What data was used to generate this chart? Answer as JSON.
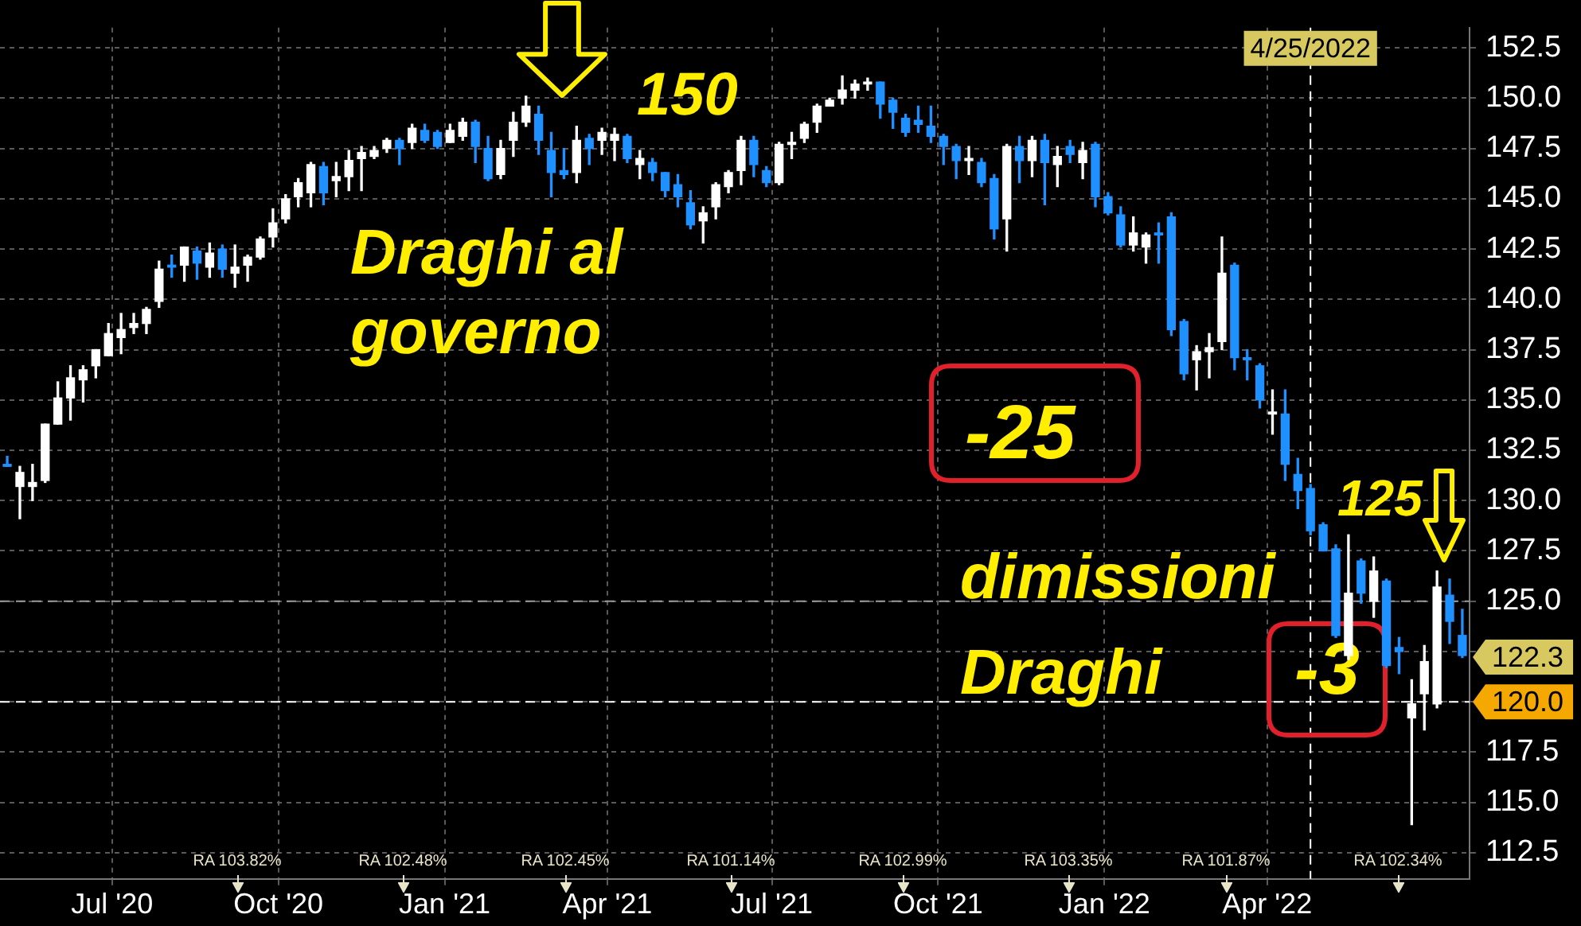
{
  "chart_data": {
    "type": "candlestick",
    "x": [
      "2020-05-04",
      "2020-05-11",
      "2020-05-18",
      "2020-05-25",
      "2020-06-01",
      "2020-06-08",
      "2020-06-15",
      "2020-06-22",
      "2020-06-29",
      "2020-07-06",
      "2020-07-13",
      "2020-07-20",
      "2020-07-27",
      "2020-08-03",
      "2020-08-10",
      "2020-08-17",
      "2020-08-24",
      "2020-08-31",
      "2020-09-07",
      "2020-09-14",
      "2020-09-21",
      "2020-09-28",
      "2020-10-05",
      "2020-10-12",
      "2020-10-19",
      "2020-10-26",
      "2020-11-02",
      "2020-11-09",
      "2020-11-16",
      "2020-11-23",
      "2020-11-30",
      "2020-12-07",
      "2020-12-14",
      "2020-12-21",
      "2020-12-28",
      "2021-01-04",
      "2021-01-11",
      "2021-01-18",
      "2021-01-25",
      "2021-02-01",
      "2021-02-08",
      "2021-02-15",
      "2021-02-22",
      "2021-03-01",
      "2021-03-08",
      "2021-03-15",
      "2021-03-22",
      "2021-03-29",
      "2021-04-05",
      "2021-04-12",
      "2021-04-19",
      "2021-04-26",
      "2021-05-03",
      "2021-05-10",
      "2021-05-17",
      "2021-05-24",
      "2021-05-31",
      "2021-06-07",
      "2021-06-14",
      "2021-06-21",
      "2021-06-28",
      "2021-07-05",
      "2021-07-12",
      "2021-07-19",
      "2021-07-26",
      "2021-08-02",
      "2021-08-09",
      "2021-08-16",
      "2021-08-23",
      "2021-08-30",
      "2021-09-06",
      "2021-09-13",
      "2021-09-20",
      "2021-09-27",
      "2021-10-04",
      "2021-10-11",
      "2021-10-18",
      "2021-10-25",
      "2021-11-01",
      "2021-11-08",
      "2021-11-15",
      "2021-11-22",
      "2021-11-29",
      "2021-12-06",
      "2021-12-13",
      "2021-12-20",
      "2021-12-27",
      "2022-01-03",
      "2022-01-10",
      "2022-01-17",
      "2022-01-24",
      "2022-01-31",
      "2022-02-07",
      "2022-02-14",
      "2022-02-21",
      "2022-02-28",
      "2022-03-07",
      "2022-03-14",
      "2022-03-21",
      "2022-03-28",
      "2022-04-04",
      "2022-04-11",
      "2022-04-18",
      "2022-04-25",
      "2022-05-02",
      "2022-05-09",
      "2022-05-16",
      "2022-05-23",
      "2022-05-30",
      "2022-06-06",
      "2022-06-13",
      "2022-06-20",
      "2022-06-27",
      "2022-07-04",
      "2022-07-11",
      "2022-07-18"
    ],
    "ohlc": [
      [
        131.8,
        132.2,
        131.7,
        131.7
      ],
      [
        130.7,
        131.7,
        129.1,
        131.4
      ],
      [
        130.7,
        131.8,
        130.0,
        130.9
      ],
      [
        131.0,
        133.8,
        130.9,
        133.8
      ],
      [
        133.8,
        135.9,
        133.8,
        135.1
      ],
      [
        135.1,
        136.7,
        134.0,
        136.1
      ],
      [
        136.0,
        136.7,
        134.9,
        136.5
      ],
      [
        136.7,
        137.5,
        136.1,
        137.5
      ],
      [
        137.2,
        138.8,
        137.2,
        138.3
      ],
      [
        138.1,
        139.3,
        137.3,
        138.5
      ],
      [
        138.6,
        139.3,
        138.3,
        138.8
      ],
      [
        138.8,
        139.6,
        138.3,
        139.5
      ],
      [
        139.9,
        141.9,
        139.6,
        141.5
      ],
      [
        141.7,
        142.2,
        141.1,
        141.6
      ],
      [
        141.7,
        142.6,
        140.9,
        142.6
      ],
      [
        142.4,
        142.6,
        141.0,
        141.8
      ],
      [
        141.6,
        142.8,
        141.1,
        142.3
      ],
      [
        142.5,
        142.7,
        141.1,
        141.5
      ],
      [
        141.3,
        142.7,
        140.6,
        141.6
      ],
      [
        141.7,
        142.2,
        140.9,
        142.1
      ],
      [
        142.1,
        143.1,
        142.0,
        143.0
      ],
      [
        143.1,
        144.5,
        142.6,
        143.8
      ],
      [
        144.0,
        145.2,
        143.8,
        145.0
      ],
      [
        145.1,
        146.0,
        144.6,
        145.8
      ],
      [
        145.3,
        146.8,
        144.6,
        146.7
      ],
      [
        146.6,
        146.8,
        144.7,
        145.3
      ],
      [
        145.9,
        146.8,
        145.1,
        146.1
      ],
      [
        146.1,
        147.4,
        145.4,
        146.9
      ],
      [
        147.0,
        147.6,
        145.4,
        147.3
      ],
      [
        147.1,
        147.6,
        147.0,
        147.4
      ],
      [
        147.5,
        148.0,
        147.3,
        147.9
      ],
      [
        147.9,
        148.0,
        146.7,
        147.5
      ],
      [
        147.8,
        148.7,
        147.5,
        148.5
      ],
      [
        148.4,
        148.7,
        147.8,
        147.9
      ],
      [
        148.3,
        148.4,
        147.5,
        147.6
      ],
      [
        147.8,
        148.7,
        147.8,
        148.4
      ],
      [
        148.1,
        149.0,
        147.9,
        148.8
      ],
      [
        148.8,
        148.9,
        146.8,
        147.6
      ],
      [
        147.5,
        148.1,
        145.9,
        146.0
      ],
      [
        146.2,
        147.9,
        146.0,
        147.5
      ],
      [
        147.9,
        149.3,
        147.1,
        148.8
      ],
      [
        148.8,
        150.1,
        148.6,
        149.6
      ],
      [
        149.2,
        149.6,
        147.2,
        147.9
      ],
      [
        147.4,
        148.3,
        145.1,
        146.3
      ],
      [
        146.4,
        147.5,
        146.0,
        146.2
      ],
      [
        146.3,
        148.6,
        145.8,
        147.9
      ],
      [
        148.0,
        148.2,
        146.7,
        147.5
      ],
      [
        147.9,
        148.5,
        147.2,
        148.3
      ],
      [
        147.9,
        148.5,
        146.9,
        148.2
      ],
      [
        148.1,
        148.2,
        146.8,
        147.0
      ],
      [
        146.7,
        147.4,
        146.0,
        147.0
      ],
      [
        146.8,
        147.0,
        145.9,
        146.3
      ],
      [
        146.3,
        146.3,
        145.1,
        145.4
      ],
      [
        145.7,
        146.2,
        144.6,
        145.1
      ],
      [
        144.8,
        145.4,
        143.5,
        143.7
      ],
      [
        143.9,
        144.6,
        142.8,
        144.3
      ],
      [
        144.6,
        145.8,
        144.0,
        145.7
      ],
      [
        145.6,
        146.4,
        145.3,
        146.3
      ],
      [
        146.4,
        148.1,
        145.7,
        147.9
      ],
      [
        147.9,
        148.1,
        146.1,
        146.7
      ],
      [
        146.4,
        146.6,
        145.6,
        145.8
      ],
      [
        145.8,
        147.8,
        145.7,
        147.7
      ],
      [
        147.7,
        148.3,
        147.0,
        147.8
      ],
      [
        148.0,
        148.8,
        147.8,
        148.7
      ],
      [
        148.8,
        149.7,
        148.3,
        149.6
      ],
      [
        149.6,
        150.0,
        149.6,
        149.9
      ],
      [
        150.0,
        151.1,
        149.7,
        150.4
      ],
      [
        150.4,
        150.9,
        150.0,
        150.7
      ],
      [
        150.7,
        151.0,
        150.4,
        150.8
      ],
      [
        150.8,
        150.8,
        149.0,
        149.7
      ],
      [
        149.9,
        150.0,
        148.5,
        149.3
      ],
      [
        149.0,
        149.2,
        148.1,
        148.3
      ],
      [
        148.9,
        149.6,
        148.3,
        148.7
      ],
      [
        148.6,
        149.6,
        147.8,
        148.1
      ],
      [
        148.1,
        148.2,
        146.7,
        147.6
      ],
      [
        147.6,
        147.7,
        146.0,
        146.9
      ],
      [
        146.9,
        147.6,
        146.2,
        147.0
      ],
      [
        146.8,
        147.0,
        145.6,
        145.8
      ],
      [
        146.0,
        146.2,
        143.0,
        143.5
      ],
      [
        144.0,
        147.7,
        142.4,
        147.6
      ],
      [
        147.6,
        148.1,
        145.8,
        146.9
      ],
      [
        146.9,
        148.1,
        146.1,
        147.9
      ],
      [
        147.9,
        148.2,
        144.7,
        146.8
      ],
      [
        146.7,
        147.6,
        145.6,
        147.1
      ],
      [
        147.6,
        147.9,
        146.8,
        147.2
      ],
      [
        146.8,
        147.8,
        146.0,
        147.4
      ],
      [
        147.7,
        147.8,
        144.6,
        145.1
      ],
      [
        145.1,
        145.3,
        144.2,
        144.3
      ],
      [
        144.2,
        144.6,
        142.6,
        142.7
      ],
      [
        142.7,
        144.1,
        142.4,
        143.3
      ],
      [
        142.6,
        143.3,
        141.8,
        143.2
      ],
      [
        143.3,
        143.8,
        141.8,
        143.2
      ],
      [
        144.1,
        144.3,
        138.2,
        138.5
      ],
      [
        138.9,
        139.0,
        136.0,
        136.3
      ],
      [
        137.0,
        137.7,
        135.5,
        137.4
      ],
      [
        137.4,
        138.3,
        136.1,
        137.6
      ],
      [
        137.9,
        143.1,
        137.5,
        141.3
      ],
      [
        141.7,
        141.8,
        136.5,
        137.1
      ],
      [
        137.1,
        137.5,
        136.0,
        137.0
      ],
      [
        136.7,
        136.8,
        134.6,
        135.0
      ],
      [
        134.3,
        135.5,
        133.3,
        134.4
      ],
      [
        134.3,
        135.5,
        131.0,
        131.8
      ],
      [
        131.3,
        132.1,
        129.6,
        130.5
      ],
      [
        130.6,
        130.8,
        128.3,
        128.5
      ],
      [
        128.8,
        128.9,
        127.5,
        127.5
      ],
      [
        127.6,
        127.8,
        123.2,
        123.3
      ],
      [
        122.3,
        128.3,
        122.1,
        125.4
      ],
      [
        127.0,
        127.1,
        124.9,
        125.4
      ],
      [
        125.0,
        127.2,
        124.2,
        126.5
      ],
      [
        126.0,
        126.1,
        121.7,
        121.8
      ],
      [
        122.7,
        123.2,
        121.4,
        122.5
      ],
      [
        119.2,
        121.1,
        113.9,
        119.9
      ],
      [
        120.4,
        122.8,
        118.6,
        122.0
      ],
      [
        119.9,
        126.5,
        119.7,
        125.7
      ],
      [
        125.3,
        126.1,
        122.9,
        124.0
      ],
      [
        123.3,
        124.6,
        122.2,
        122.3
      ]
    ],
    "xlim": [
      "2020-04-30",
      "2022-07-22"
    ],
    "xticks": [
      {
        "value": "2020-07-01",
        "label": "Jul '20"
      },
      {
        "value": "2020-10-01",
        "label": "Oct '20"
      },
      {
        "value": "2021-01-01",
        "label": "Jan '21"
      },
      {
        "value": "2021-04-01",
        "label": "Apr '21"
      },
      {
        "value": "2021-07-01",
        "label": "Jul '21"
      },
      {
        "value": "2021-10-01",
        "label": "Oct '21"
      },
      {
        "value": "2022-01-01",
        "label": "Jan '22"
      },
      {
        "value": "2022-04-01",
        "label": "Apr '22"
      }
    ],
    "ylim": [
      111.2,
      153.5
    ],
    "yticks": [
      {
        "value": 112.5,
        "label": "112.5"
      },
      {
        "value": 115,
        "label": "115.0"
      },
      {
        "value": 117.5,
        "label": "117.5"
      },
      {
        "value": 120,
        "label": null
      },
      {
        "value": 122.5,
        "label": null
      },
      {
        "value": 125,
        "label": "125.0"
      },
      {
        "value": 127.5,
        "label": "127.5"
      },
      {
        "value": 130,
        "label": "130.0"
      },
      {
        "value": 132.5,
        "label": "132.5"
      },
      {
        "value": 135,
        "label": "135.0"
      },
      {
        "value": 137.5,
        "label": "137.5"
      },
      {
        "value": 140,
        "label": "140.0"
      },
      {
        "value": 142.5,
        "label": "142.5"
      },
      {
        "value": 145,
        "label": "145.0"
      },
      {
        "value": 147.5,
        "label": "147.5"
      },
      {
        "value": 150,
        "label": "150.0"
      },
      {
        "value": 152.5,
        "label": "152.5"
      }
    ],
    "grid": true,
    "ref_lines": [
      {
        "axis": "y",
        "value": 125,
        "color": "#9a9a9a",
        "line_style": "dashed"
      },
      {
        "axis": "y",
        "value": 120,
        "label": "120.0",
        "color": "#ffffff",
        "line_style": "dashed"
      },
      {
        "axis": "x",
        "value": "2022-04-25",
        "label": "4/25/2022",
        "color": "#ffffff",
        "line_style": "dashed"
      }
    ],
    "annotations": [
      "150",
      "Draghi al governo",
      "-25",
      "dimissioni Draghi",
      "-3",
      "125",
      "122.3",
      "RA 103.82%",
      "RA 102.48%",
      "RA 102.45%",
      "RA 101.14%",
      "RA 102.99%",
      "RA 103.35%",
      "RA 101.87%",
      "RA 102.34%"
    ]
  }
}
